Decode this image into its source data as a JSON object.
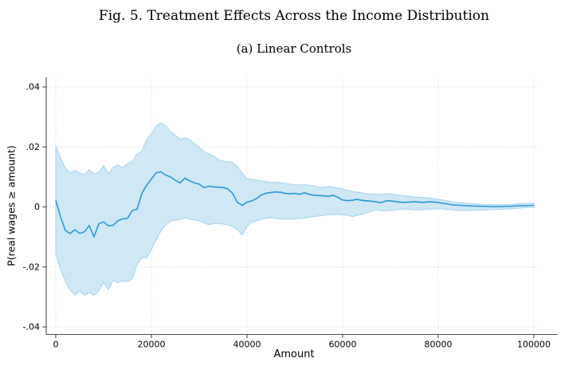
{
  "figure": {
    "title": "Fig. 5. Treatment Effects Across the Income Distribution",
    "subtitle": "(a) Linear Controls"
  },
  "colors": {
    "line": "#2699d6",
    "band_fill": "#cfe8f6",
    "band_edge": "#a8d7ef",
    "grid": "#d4d4d4",
    "axis": "#4a4a4a",
    "text": "#000000",
    "background": "#ffffff"
  },
  "chart_data": {
    "type": "line",
    "title": "Fig. 5. Treatment Effects Across the Income Distribution",
    "subtitle": "(a) Linear Controls",
    "xlabel": "Amount",
    "ylabel": "P(real wages ≥ amount)",
    "xlim": [
      0,
      100000
    ],
    "ylim": [
      -0.04,
      0.04
    ],
    "x_ticks": [
      0,
      20000,
      40000,
      60000,
      80000,
      100000
    ],
    "x_tick_labels": [
      "0",
      "20000",
      "40000",
      "60000",
      "80000",
      "100000"
    ],
    "y_ticks": [
      -0.04,
      -0.02,
      0,
      0.02,
      0.04
    ],
    "y_tick_labels": [
      "-.04",
      "-.02",
      "0",
      ".02",
      ".04"
    ],
    "grid": "dotted gridlines at all x and y ticks",
    "legend": "none",
    "x": [
      0,
      1000,
      2000,
      3000,
      4000,
      5000,
      6000,
      7000,
      8000,
      9000,
      10000,
      11000,
      12000,
      13000,
      14000,
      15000,
      16000,
      17000,
      18000,
      19000,
      20000,
      21000,
      22000,
      23000,
      24000,
      25000,
      26000,
      27000,
      28000,
      29000,
      30000,
      31000,
      32000,
      33000,
      34000,
      35000,
      36000,
      37000,
      38000,
      39000,
      40000,
      41000,
      42000,
      43000,
      44000,
      45000,
      46000,
      47000,
      48000,
      49000,
      50000,
      51000,
      52000,
      53000,
      54000,
      55000,
      56000,
      57000,
      58000,
      59000,
      60000,
      61000,
      62000,
      63000,
      64000,
      65000,
      66000,
      67000,
      68000,
      69000,
      70000,
      71000,
      72000,
      73000,
      74000,
      75000,
      76000,
      77000,
      78000,
      79000,
      80000,
      81000,
      82000,
      83000,
      84000,
      85000,
      86000,
      87000,
      88000,
      89000,
      90000,
      91000,
      92000,
      93000,
      94000,
      95000,
      96000,
      97000,
      98000,
      99000,
      100000
    ],
    "series": [
      {
        "name": "treatment-effect-estimate",
        "values": [
          0.0022,
          -0.0033,
          -0.0078,
          -0.0089,
          -0.0076,
          -0.0088,
          -0.0083,
          -0.0062,
          -0.01,
          -0.0056,
          -0.005,
          -0.0063,
          -0.0061,
          -0.0046,
          -0.004,
          -0.0038,
          -0.0012,
          -0.0008,
          0.0045,
          0.0072,
          0.0093,
          0.0114,
          0.0117,
          0.0106,
          0.01,
          0.0089,
          0.008,
          0.0096,
          0.0087,
          0.008,
          0.0076,
          0.0064,
          0.0069,
          0.0067,
          0.0066,
          0.0065,
          0.006,
          0.0045,
          0.0015,
          0.0005,
          0.0016,
          0.002,
          0.0028,
          0.004,
          0.0046,
          0.0048,
          0.005,
          0.0049,
          0.0045,
          0.0044,
          0.0045,
          0.0042,
          0.0047,
          0.0042,
          0.0039,
          0.0038,
          0.0037,
          0.0035,
          0.0039,
          0.0032,
          0.0023,
          0.0021,
          0.0022,
          0.0025,
          0.0022,
          0.002,
          0.0019,
          0.0017,
          0.0014,
          0.002,
          0.002,
          0.0018,
          0.0016,
          0.0015,
          0.0016,
          0.0017,
          0.0016,
          0.0015,
          0.0017,
          0.0016,
          0.0015,
          0.0012,
          0.001,
          0.0007,
          0.0006,
          0.0005,
          0.0004,
          0.0003,
          0.0003,
          0.0002,
          0.0002,
          0.0001,
          0.0001,
          0.0001,
          0.0002,
          0.0002,
          0.0003,
          0.0004,
          0.0004,
          0.0005,
          0.0005
        ]
      },
      {
        "name": "ci-upper",
        "values": [
          0.0203,
          0.0163,
          0.013,
          0.0113,
          0.0121,
          0.0114,
          0.0108,
          0.0124,
          0.011,
          0.0115,
          0.0137,
          0.011,
          0.0132,
          0.014,
          0.013,
          0.0144,
          0.015,
          0.0177,
          0.0185,
          0.0225,
          0.0243,
          0.027,
          0.028,
          0.027,
          0.0251,
          0.0238,
          0.0225,
          0.023,
          0.0225,
          0.0211,
          0.0198,
          0.0185,
          0.0177,
          0.017,
          0.0158,
          0.0153,
          0.015,
          0.0148,
          0.0135,
          0.0112,
          0.0094,
          0.0092,
          0.009,
          0.0087,
          0.0085,
          0.0081,
          0.0083,
          0.0081,
          0.0078,
          0.0076,
          0.0074,
          0.0073,
          0.0075,
          0.0072,
          0.007,
          0.0066,
          0.0065,
          0.0068,
          0.0066,
          0.0063,
          0.006,
          0.0055,
          0.0052,
          0.005,
          0.0047,
          0.0044,
          0.0043,
          0.0042,
          0.0041,
          0.0043,
          0.0044,
          0.0041,
          0.0039,
          0.0037,
          0.0035,
          0.0033,
          0.0032,
          0.0031,
          0.003,
          0.0028,
          0.0025,
          0.0023,
          0.002,
          0.0017,
          0.0015,
          0.0014,
          0.0012,
          0.0011,
          0.001,
          0.0009,
          0.0008,
          0.0008,
          0.0007,
          0.0007,
          0.0008,
          0.0008,
          0.0009,
          0.0011,
          0.0012,
          0.0012,
          0.0013
        ]
      },
      {
        "name": "ci-lower",
        "values": [
          -0.0153,
          -0.0209,
          -0.0249,
          -0.0276,
          -0.0294,
          -0.028,
          -0.0294,
          -0.0285,
          -0.0295,
          -0.028,
          -0.0249,
          -0.0276,
          -0.0245,
          -0.0253,
          -0.0245,
          -0.0249,
          -0.024,
          -0.0192,
          -0.017,
          -0.017,
          -0.0143,
          -0.011,
          -0.008,
          -0.006,
          -0.0047,
          -0.0044,
          -0.0042,
          -0.0036,
          -0.004,
          -0.0044,
          -0.0046,
          -0.0053,
          -0.0059,
          -0.0055,
          -0.0056,
          -0.0057,
          -0.006,
          -0.0066,
          -0.0075,
          -0.0094,
          -0.0065,
          -0.005,
          -0.0046,
          -0.0041,
          -0.0038,
          -0.0036,
          -0.0038,
          -0.004,
          -0.0041,
          -0.004,
          -0.004,
          -0.0038,
          -0.0037,
          -0.0034,
          -0.0032,
          -0.003,
          -0.0028,
          -0.0026,
          -0.0025,
          -0.0025,
          -0.0025,
          -0.0028,
          -0.0032,
          -0.0028,
          -0.0024,
          -0.002,
          -0.0015,
          -0.001,
          -0.0012,
          -0.0013,
          -0.0012,
          -0.001,
          -0.0008,
          -0.0007,
          -0.0008,
          -0.001,
          -0.001,
          -0.0009,
          -0.0008,
          -0.0007,
          -0.0006,
          -0.0007,
          -0.0009,
          -0.001,
          -0.0011,
          -0.0012,
          -0.0012,
          -0.0011,
          -0.0011,
          -0.001,
          -0.001,
          -0.0009,
          -0.0008,
          -0.0008,
          -0.0007,
          -0.0006,
          -0.0005,
          -0.0004,
          -0.0003,
          -0.0002,
          -0.0002
        ]
      }
    ]
  }
}
